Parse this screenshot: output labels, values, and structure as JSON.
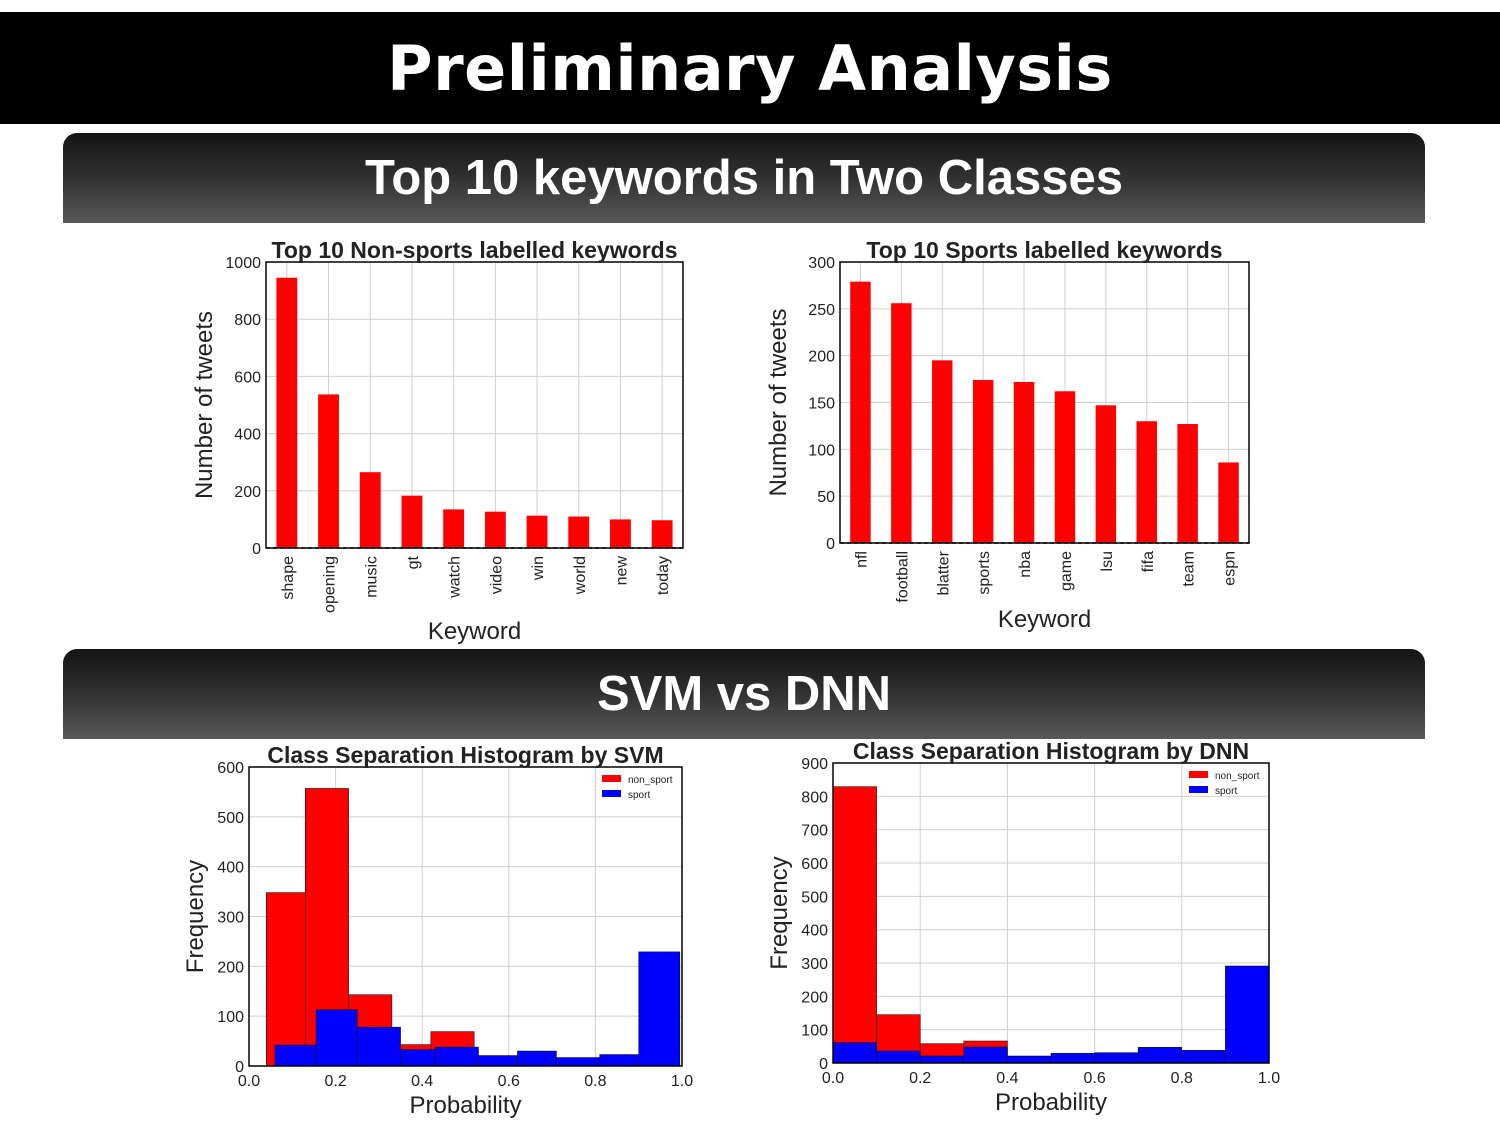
{
  "slide": {
    "title": "Preliminary Analysis",
    "section1": "Top 10 keywords in Two Classes",
    "section2": "SVM vs DNN"
  },
  "colors": {
    "red": "#ff0000",
    "blue": "#0000ff",
    "grid": "#cfcfcf"
  },
  "chart_data": [
    {
      "type": "bar",
      "title": "Top 10 Non-sports labelled keywords",
      "xlabel": "Keyword",
      "ylabel": "Number of tweets",
      "categories": [
        "shape",
        "opening",
        "music",
        "gt",
        "watch",
        "video",
        "win",
        "world",
        "new",
        "today"
      ],
      "values": [
        945,
        537,
        265,
        183,
        135,
        127,
        113,
        110,
        100,
        97
      ],
      "ylim": [
        0,
        1000
      ],
      "yticks": [
        0,
        200,
        400,
        600,
        800,
        1000
      ],
      "grid": true,
      "color": "#ff0000"
    },
    {
      "type": "bar",
      "title": "Top 10 Sports labelled keywords",
      "xlabel": "Keyword",
      "ylabel": "Number of tweets",
      "categories": [
        "nfl",
        "football",
        "blatter",
        "sports",
        "nba",
        "game",
        "lsu",
        "fifa",
        "team",
        "espn"
      ],
      "values": [
        279,
        256,
        195,
        174,
        172,
        162,
        147,
        130,
        127,
        86
      ],
      "ylim": [
        0,
        300
      ],
      "yticks": [
        0,
        50,
        100,
        150,
        200,
        250,
        300
      ],
      "grid": true,
      "color": "#ff0000"
    },
    {
      "type": "histogram",
      "title": "Class Separation Histogram by SVM",
      "xlabel": "Probability",
      "ylabel": "Frequency",
      "xlim": [
        0,
        1
      ],
      "ylim": [
        0,
        600
      ],
      "xticks": [
        0.0,
        0.2,
        0.4,
        0.6,
        0.8,
        1.0
      ],
      "yticks": [
        0,
        100,
        200,
        300,
        400,
        500,
        600
      ],
      "legend_position": "top-right",
      "grid": true,
      "series": [
        {
          "name": "non_sport",
          "color": "#ff0000",
          "bins": [
            [
              0.04,
              0.13,
              348
            ],
            [
              0.13,
              0.23,
              557
            ],
            [
              0.23,
              0.33,
              143
            ],
            [
              0.33,
              0.42,
              43
            ],
            [
              0.42,
              0.52,
              69
            ]
          ]
        },
        {
          "name": "sport",
          "color": "#0000ff",
          "bins": [
            [
              0.06,
              0.155,
              42
            ],
            [
              0.155,
              0.25,
              113
            ],
            [
              0.25,
              0.35,
              78
            ],
            [
              0.35,
              0.43,
              33
            ],
            [
              0.43,
              0.53,
              38
            ],
            [
              0.53,
              0.62,
              21
            ],
            [
              0.62,
              0.71,
              30
            ],
            [
              0.71,
              0.81,
              17
            ],
            [
              0.81,
              0.9,
              23
            ],
            [
              0.9,
              0.995,
              229
            ]
          ]
        }
      ]
    },
    {
      "type": "histogram",
      "title": "Class Separation Histogram by DNN",
      "xlabel": "Probability",
      "ylabel": "Frequency",
      "xlim": [
        0,
        1
      ],
      "ylim": [
        0,
        900
      ],
      "xticks": [
        0.0,
        0.2,
        0.4,
        0.6,
        0.8,
        1.0
      ],
      "yticks": [
        0,
        100,
        200,
        300,
        400,
        500,
        600,
        700,
        800,
        900
      ],
      "legend_position": "top-right",
      "grid": true,
      "series": [
        {
          "name": "non_sport",
          "color": "#ff0000",
          "bins": [
            [
              0.0,
              0.1,
              829
            ],
            [
              0.1,
              0.2,
              145
            ],
            [
              0.2,
              0.3,
              58
            ],
            [
              0.3,
              0.4,
              66
            ]
          ]
        },
        {
          "name": "sport",
          "color": "#0000ff",
          "bins": [
            [
              0.0,
              0.1,
              61
            ],
            [
              0.1,
              0.2,
              36
            ],
            [
              0.2,
              0.3,
              21
            ],
            [
              0.3,
              0.4,
              48
            ],
            [
              0.4,
              0.5,
              21
            ],
            [
              0.5,
              0.6,
              29
            ],
            [
              0.6,
              0.7,
              31
            ],
            [
              0.7,
              0.8,
              47
            ],
            [
              0.8,
              0.9,
              38
            ],
            [
              0.9,
              1.0,
              291
            ]
          ]
        }
      ]
    }
  ]
}
